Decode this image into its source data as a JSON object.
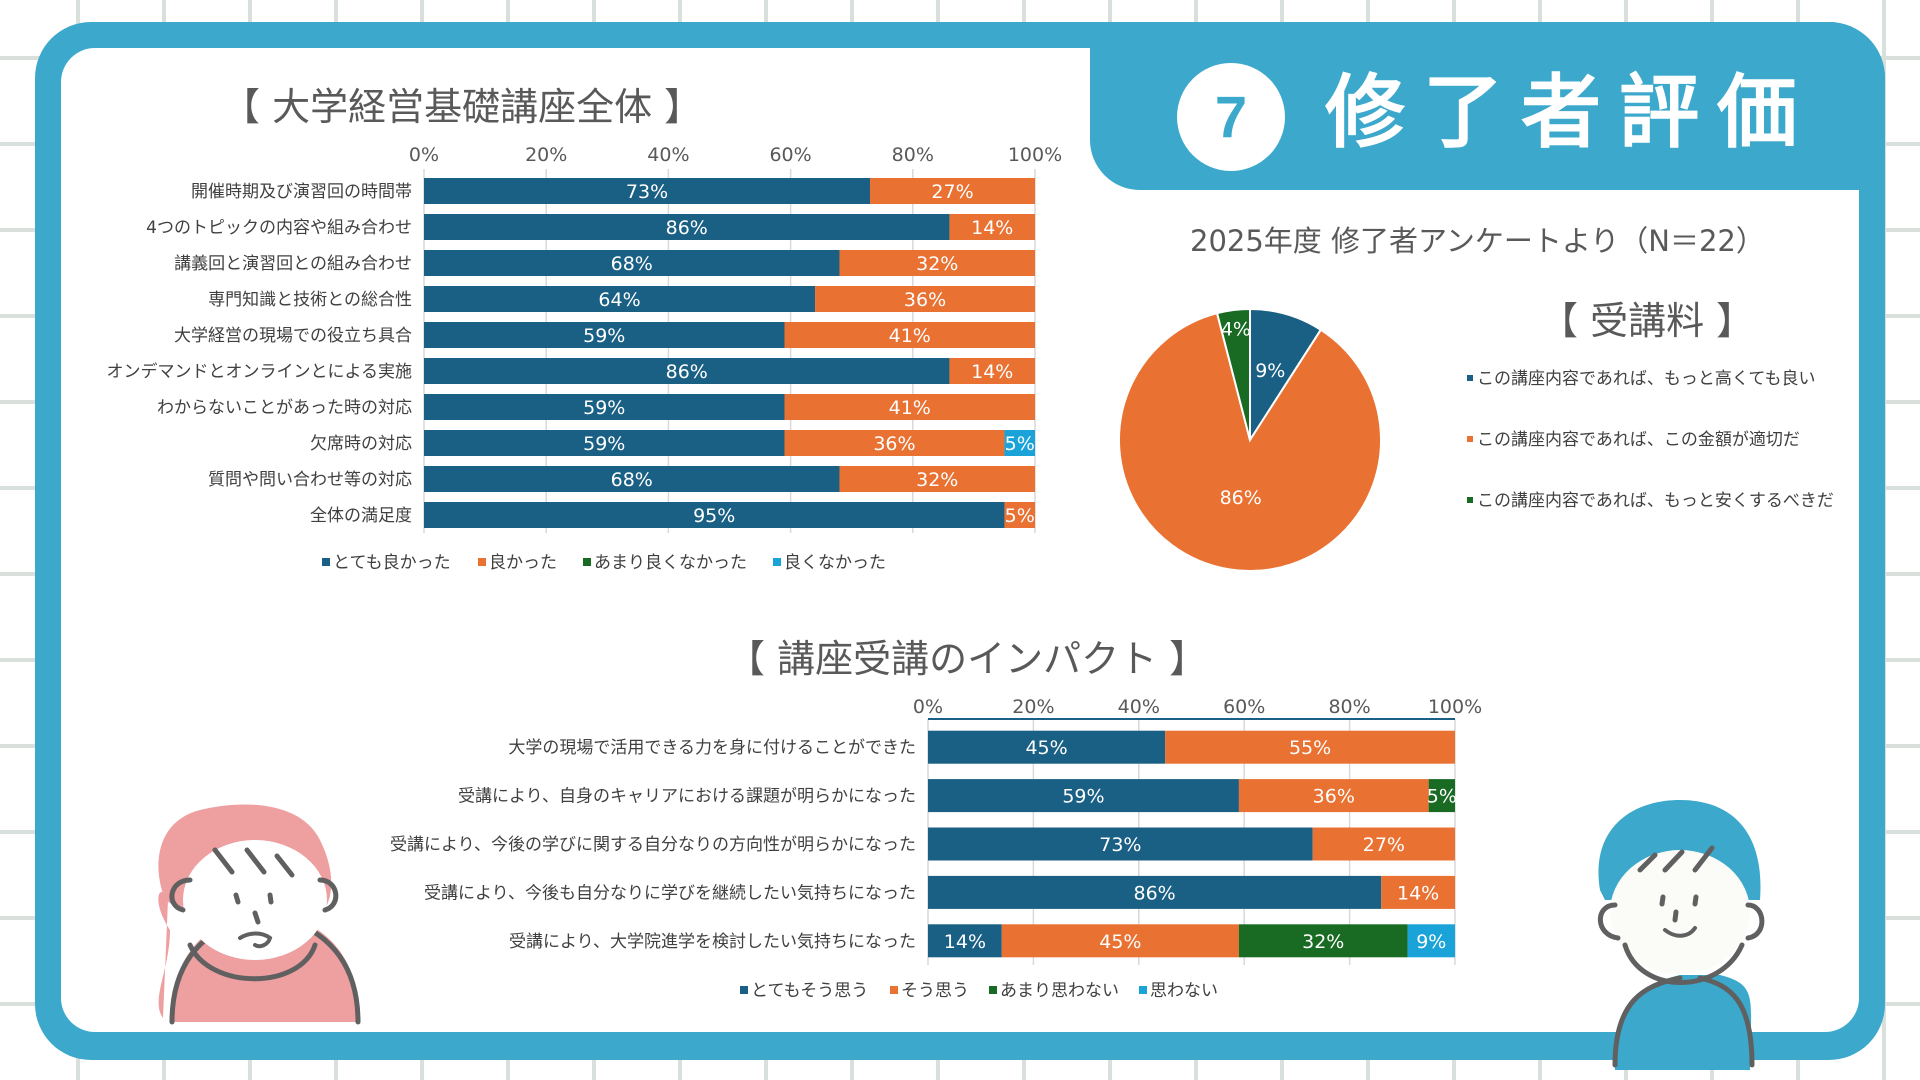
{
  "header": {
    "badge_number": "7",
    "title": "修了者評価",
    "subtitle": "2025年度 修了者アンケートより（N＝22）",
    "accent_color": "#3ba8cc"
  },
  "colors": {
    "series1": "#1a5f84",
    "series2": "#e97132",
    "series3": "#196b24",
    "series4": "#1aa3d8"
  },
  "chart_data": [
    {
      "type": "bar",
      "orientation": "horizontal-stacked-100",
      "title": "【 大学経営基礎講座全体 】",
      "categories": [
        "開催時期及び演習回の時間帯",
        "4つのトピックの内容や組み合わせ",
        "講義回と演習回との組み合わせ",
        "専門知識と技術との総合性",
        "大学経営の現場での役立ち具合",
        "オンデマンドとオンラインとによる実施",
        "わからないことがあった時の対応",
        "欠席時の対応",
        "質問や問い合わせ等の対応",
        "全体の満足度"
      ],
      "series": [
        {
          "name": "とても良かった",
          "values": [
            73,
            86,
            68,
            64,
            59,
            86,
            59,
            59,
            68,
            95
          ]
        },
        {
          "name": "良かった",
          "values": [
            27,
            14,
            32,
            36,
            41,
            14,
            41,
            36,
            32,
            5
          ]
        },
        {
          "name": "あまり良くなかった",
          "values": [
            0,
            0,
            0,
            0,
            0,
            0,
            0,
            0,
            0,
            0
          ]
        },
        {
          "name": "良くなかった",
          "values": [
            0,
            0,
            0,
            0,
            0,
            0,
            0,
            5,
            0,
            0
          ]
        }
      ],
      "xticks": [
        "0%",
        "20%",
        "40%",
        "60%",
        "80%",
        "100%"
      ],
      "xlim": [
        0,
        100
      ],
      "grid": true,
      "legend": "bottom"
    },
    {
      "type": "pie",
      "title": "【 受講料 】",
      "labels": [
        "この講座内容であれば、もっと高くても良い",
        "この講座内容であれば、この金額が適切だ",
        "この講座内容であれば、もっと安くするべきだ"
      ],
      "values": [
        9,
        86,
        4
      ],
      "value_labels": [
        "9%",
        "86%",
        "4%"
      ],
      "legend": "right"
    },
    {
      "type": "bar",
      "orientation": "horizontal-stacked-100",
      "title": "【 講座受講のインパクト 】",
      "categories": [
        "大学の現場で活用できる力を身に付けることができた",
        "受講により、自身のキャリアにおける課題が明らかになった",
        "受講により、今後の学びに関する自分なりの方向性が明らかになった",
        "受講により、今後も自分なりに学びを継続したい気持ちになった",
        "受講により、大学院進学を検討したい気持ちになった"
      ],
      "series": [
        {
          "name": "とてもそう思う",
          "values": [
            45,
            59,
            73,
            86,
            14
          ]
        },
        {
          "name": "そう思う",
          "values": [
            55,
            36,
            27,
            14,
            45
          ]
        },
        {
          "name": "あまり思わない",
          "values": [
            0,
            5,
            0,
            0,
            32
          ]
        },
        {
          "name": "思わない",
          "values": [
            0,
            0,
            0,
            0,
            9
          ]
        }
      ],
      "xticks": [
        "0%",
        "20%",
        "40%",
        "60%",
        "80%",
        "100%"
      ],
      "xlim": [
        0,
        100
      ],
      "grid": true,
      "legend": "bottom"
    }
  ]
}
